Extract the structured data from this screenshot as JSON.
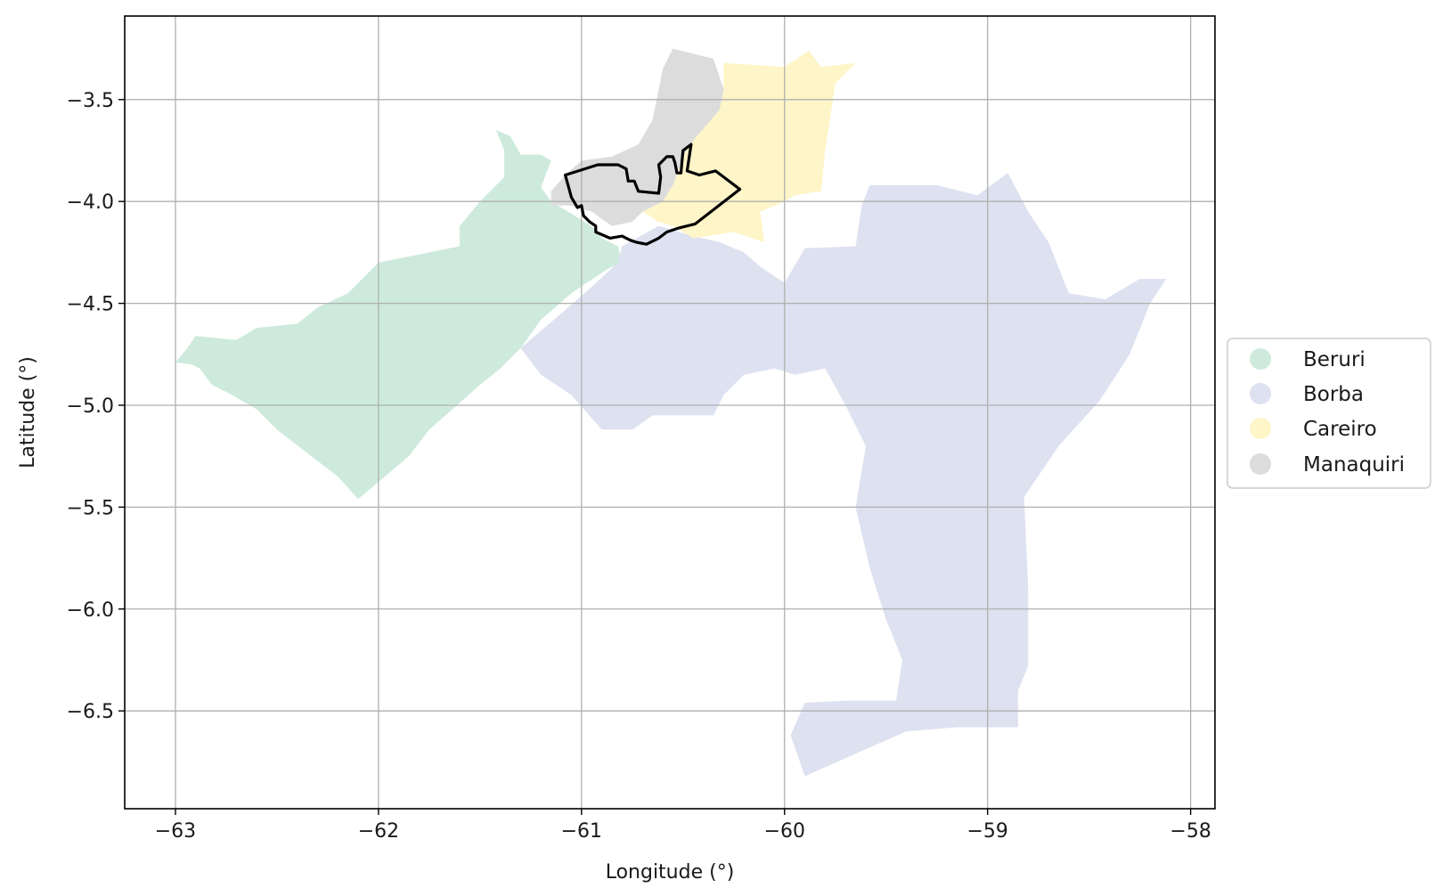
{
  "map": {
    "xlabel": "Longitude (°)",
    "ylabel": "Latitude (°)",
    "xlim": [
      -63.25,
      -57.88
    ],
    "ylim": [
      -6.98,
      -3.09
    ],
    "grid": true,
    "x_ticks": [
      -63,
      -62,
      -61,
      -60,
      -59,
      -58
    ],
    "y_ticks": [
      -3.5,
      -4.0,
      -4.5,
      -5.0,
      -5.5,
      -6.0,
      -6.5
    ],
    "x_tick_labels": [
      "−63",
      "−62",
      "−61",
      "−60",
      "−59",
      "−58"
    ],
    "y_tick_labels": [
      "−3.5",
      "−4.0",
      "−4.5",
      "−5.0",
      "−5.5",
      "−6.0",
      "−6.5"
    ],
    "legend_position": "right",
    "regions": [
      {
        "name": "Beruri",
        "color": "#cdeadd",
        "boundary": [
          [
            -61.42,
            -3.65
          ],
          [
            -61.35,
            -3.68
          ],
          [
            -61.3,
            -3.77
          ],
          [
            -61.2,
            -3.77
          ],
          [
            -61.15,
            -3.8
          ],
          [
            -61.2,
            -3.93
          ],
          [
            -61.15,
            -4.0
          ],
          [
            -61.1,
            -4.03
          ],
          [
            -60.95,
            -4.12
          ],
          [
            -60.9,
            -4.18
          ],
          [
            -60.82,
            -4.22
          ],
          [
            -60.8,
            -4.3
          ],
          [
            -60.87,
            -4.33
          ],
          [
            -61.05,
            -4.45
          ],
          [
            -61.2,
            -4.58
          ],
          [
            -61.3,
            -4.72
          ],
          [
            -61.4,
            -4.82
          ],
          [
            -61.5,
            -4.9
          ],
          [
            -61.75,
            -5.12
          ],
          [
            -61.85,
            -5.25
          ],
          [
            -62.1,
            -5.46
          ],
          [
            -62.2,
            -5.35
          ],
          [
            -62.5,
            -5.12
          ],
          [
            -62.6,
            -5.02
          ],
          [
            -62.72,
            -4.95
          ],
          [
            -62.82,
            -4.9
          ],
          [
            -62.88,
            -4.82
          ],
          [
            -62.92,
            -4.8
          ],
          [
            -63.0,
            -4.79
          ],
          [
            -62.95,
            -4.73
          ],
          [
            -62.9,
            -4.66
          ],
          [
            -62.7,
            -4.68
          ],
          [
            -62.6,
            -4.62
          ],
          [
            -62.4,
            -4.6
          ],
          [
            -62.3,
            -4.52
          ],
          [
            -62.15,
            -4.45
          ],
          [
            -62.0,
            -4.3
          ],
          [
            -61.8,
            -4.26
          ],
          [
            -61.6,
            -4.22
          ],
          [
            -61.6,
            -4.12
          ],
          [
            -61.5,
            -4.0
          ],
          [
            -61.38,
            -3.88
          ],
          [
            -61.38,
            -3.75
          ]
        ]
      },
      {
        "name": "Borba",
        "color": "#dde1f0",
        "boundary": [
          [
            -61.3,
            -4.72
          ],
          [
            -61.1,
            -4.55
          ],
          [
            -60.95,
            -4.42
          ],
          [
            -60.82,
            -4.3
          ],
          [
            -60.8,
            -4.22
          ],
          [
            -60.62,
            -4.12
          ],
          [
            -60.45,
            -4.17
          ],
          [
            -60.32,
            -4.2
          ],
          [
            -60.2,
            -4.25
          ],
          [
            -60.12,
            -4.32
          ],
          [
            -60.0,
            -4.4
          ],
          [
            -59.9,
            -4.23
          ],
          [
            -59.65,
            -4.22
          ],
          [
            -59.62,
            -4.02
          ],
          [
            -59.58,
            -3.92
          ],
          [
            -59.25,
            -3.92
          ],
          [
            -59.05,
            -3.97
          ],
          [
            -58.9,
            -3.86
          ],
          [
            -58.8,
            -4.05
          ],
          [
            -58.7,
            -4.2
          ],
          [
            -58.6,
            -4.45
          ],
          [
            -58.42,
            -4.48
          ],
          [
            -58.25,
            -4.38
          ],
          [
            -58.12,
            -4.38
          ],
          [
            -58.2,
            -4.5
          ],
          [
            -58.3,
            -4.75
          ],
          [
            -58.45,
            -4.98
          ],
          [
            -58.65,
            -5.2
          ],
          [
            -58.82,
            -5.45
          ],
          [
            -58.8,
            -5.9
          ],
          [
            -58.8,
            -6.28
          ],
          [
            -58.85,
            -6.4
          ],
          [
            -58.85,
            -6.58
          ],
          [
            -59.15,
            -6.58
          ],
          [
            -59.4,
            -6.6
          ],
          [
            -59.9,
            -6.82
          ],
          [
            -59.97,
            -6.62
          ],
          [
            -59.9,
            -6.46
          ],
          [
            -59.7,
            -6.45
          ],
          [
            -59.55,
            -6.45
          ],
          [
            -59.45,
            -6.45
          ],
          [
            -59.42,
            -6.25
          ],
          [
            -59.5,
            -6.05
          ],
          [
            -59.58,
            -5.8
          ],
          [
            -59.65,
            -5.5
          ],
          [
            -59.6,
            -5.2
          ],
          [
            -59.7,
            -5.0
          ],
          [
            -59.8,
            -4.82
          ],
          [
            -59.95,
            -4.85
          ],
          [
            -60.05,
            -4.82
          ],
          [
            -60.2,
            -4.85
          ],
          [
            -60.3,
            -4.95
          ],
          [
            -60.35,
            -5.05
          ],
          [
            -60.65,
            -5.05
          ],
          [
            -60.75,
            -5.12
          ],
          [
            -60.9,
            -5.12
          ],
          [
            -61.05,
            -4.95
          ],
          [
            -61.2,
            -4.85
          ]
        ]
      },
      {
        "name": "Careiro",
        "color": "#fef5c8",
        "boundary": [
          [
            -60.3,
            -3.32
          ],
          [
            -60.0,
            -3.34
          ],
          [
            -59.88,
            -3.26
          ],
          [
            -59.82,
            -3.34
          ],
          [
            -59.65,
            -3.32
          ],
          [
            -59.75,
            -3.42
          ],
          [
            -59.8,
            -3.75
          ],
          [
            -59.82,
            -3.95
          ],
          [
            -59.95,
            -3.97
          ],
          [
            -60.0,
            -4.0
          ],
          [
            -60.12,
            -4.05
          ],
          [
            -60.1,
            -4.2
          ],
          [
            -60.25,
            -4.15
          ],
          [
            -60.38,
            -4.17
          ],
          [
            -60.45,
            -4.18
          ],
          [
            -60.55,
            -4.12
          ],
          [
            -60.62,
            -4.1
          ],
          [
            -60.7,
            -4.05
          ],
          [
            -60.6,
            -4.0
          ],
          [
            -60.55,
            -3.92
          ],
          [
            -60.5,
            -3.78
          ],
          [
            -60.45,
            -3.7
          ],
          [
            -60.38,
            -3.62
          ],
          [
            -60.32,
            -3.55
          ],
          [
            -60.3,
            -3.45
          ]
        ]
      },
      {
        "name": "Manaquiri",
        "color": "#dcdcdc",
        "boundary": [
          [
            -60.55,
            -3.25
          ],
          [
            -60.35,
            -3.3
          ],
          [
            -60.3,
            -3.45
          ],
          [
            -60.32,
            -3.55
          ],
          [
            -60.38,
            -3.62
          ],
          [
            -60.45,
            -3.7
          ],
          [
            -60.5,
            -3.78
          ],
          [
            -60.55,
            -3.92
          ],
          [
            -60.6,
            -4.0
          ],
          [
            -60.7,
            -4.05
          ],
          [
            -60.75,
            -4.1
          ],
          [
            -60.85,
            -4.12
          ],
          [
            -60.95,
            -4.05
          ],
          [
            -61.05,
            -4.02
          ],
          [
            -61.15,
            -4.02
          ],
          [
            -61.15,
            -3.95
          ],
          [
            -61.08,
            -3.87
          ],
          [
            -61.0,
            -3.8
          ],
          [
            -60.85,
            -3.78
          ],
          [
            -60.72,
            -3.72
          ],
          [
            -60.65,
            -3.6
          ],
          [
            -60.62,
            -3.45
          ],
          [
            -60.6,
            -3.35
          ]
        ]
      }
    ],
    "highlight_outline": {
      "color": "#000000",
      "boundary": [
        [
          -61.08,
          -3.87
        ],
        [
          -60.92,
          -3.82
        ],
        [
          -60.82,
          -3.82
        ],
        [
          -60.78,
          -3.84
        ],
        [
          -60.77,
          -3.9
        ],
        [
          -60.74,
          -3.9
        ],
        [
          -60.72,
          -3.95
        ],
        [
          -60.62,
          -3.96
        ],
        [
          -60.61,
          -3.88
        ],
        [
          -60.62,
          -3.82
        ],
        [
          -60.58,
          -3.78
        ],
        [
          -60.55,
          -3.78
        ],
        [
          -60.54,
          -3.81
        ],
        [
          -60.53,
          -3.86
        ],
        [
          -60.51,
          -3.86
        ],
        [
          -60.5,
          -3.75
        ],
        [
          -60.46,
          -3.72
        ],
        [
          -60.48,
          -3.85
        ],
        [
          -60.42,
          -3.87
        ],
        [
          -60.38,
          -3.86
        ],
        [
          -60.34,
          -3.85
        ],
        [
          -60.22,
          -3.94
        ],
        [
          -60.44,
          -4.11
        ],
        [
          -60.52,
          -4.13
        ],
        [
          -60.58,
          -4.15
        ],
        [
          -60.62,
          -4.18
        ],
        [
          -60.68,
          -4.21
        ],
        [
          -60.73,
          -4.2
        ],
        [
          -60.76,
          -4.19
        ],
        [
          -60.8,
          -4.17
        ],
        [
          -60.86,
          -4.18
        ],
        [
          -60.93,
          -4.15
        ],
        [
          -60.93,
          -4.12
        ],
        [
          -60.96,
          -4.1
        ],
        [
          -60.99,
          -4.07
        ],
        [
          -61.0,
          -4.02
        ],
        [
          -61.02,
          -4.03
        ],
        [
          -61.05,
          -3.98
        ]
      ]
    }
  }
}
